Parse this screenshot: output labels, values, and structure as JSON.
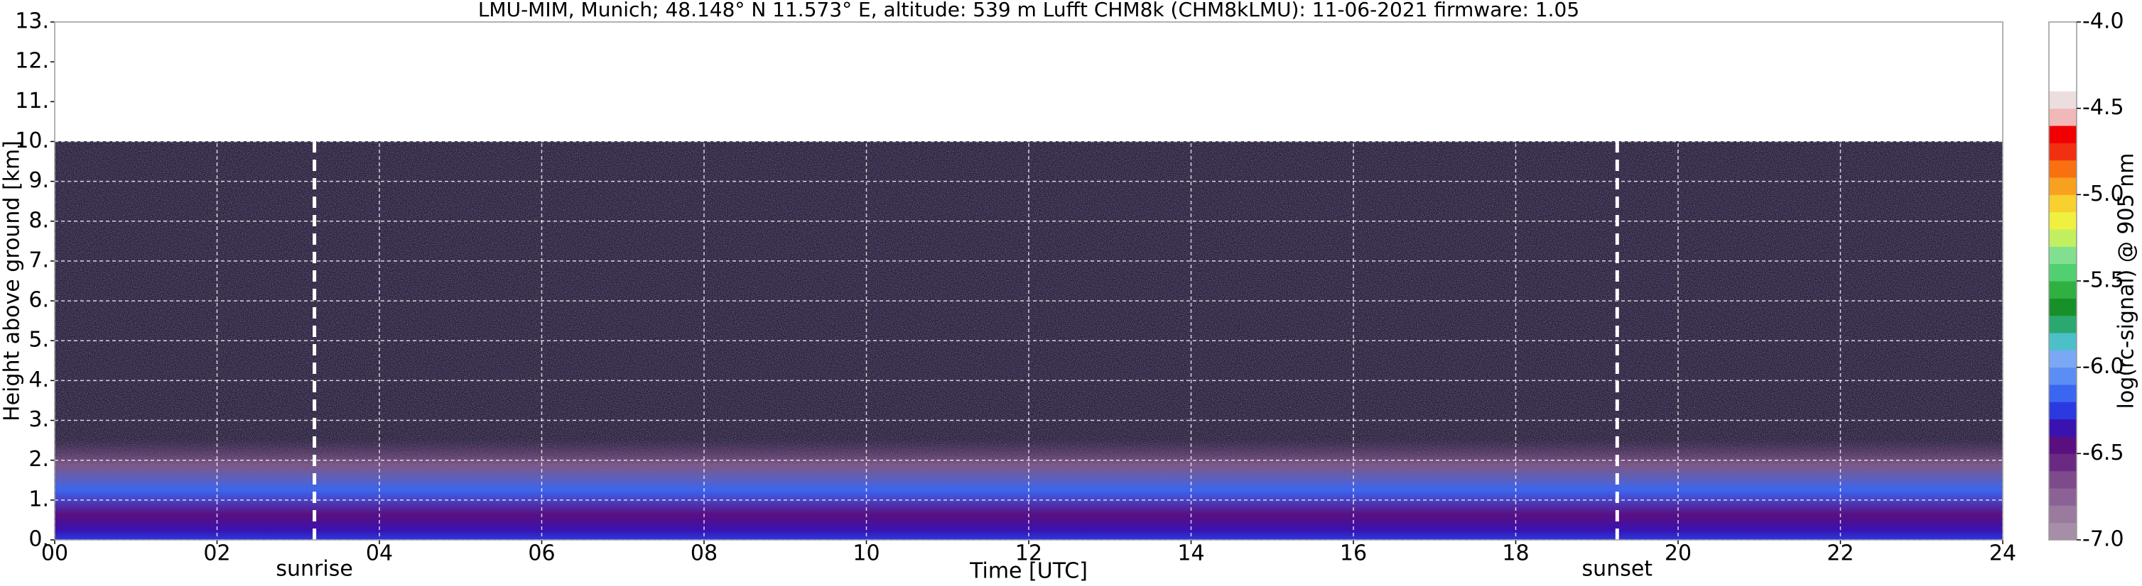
{
  "chart_data": {
    "type": "heatmap",
    "title": "LMU-MIM, Munich; 48.148° N 11.573° E, altitude: 539 m    Lufft CHM8k (CHM8kLMU): 11-06-2021    firmware: 1.05",
    "xlabel": "Time [UTC]",
    "ylabel": "Height above ground [km]",
    "xlim": [
      0,
      24
    ],
    "xticks": [
      {
        "value": 0,
        "label": "00"
      },
      {
        "value": 2,
        "label": "02"
      },
      {
        "value": 4,
        "label": "04"
      },
      {
        "value": 6,
        "label": "06"
      },
      {
        "value": 8,
        "label": "08"
      },
      10,
      12,
      14,
      16,
      18,
      20,
      22,
      24
    ],
    "ylim": [
      0,
      13
    ],
    "yticks": [
      {
        "value": 0,
        "label": "0."
      },
      {
        "value": 1,
        "label": "1."
      },
      {
        "value": 2,
        "label": "2."
      },
      {
        "value": 3,
        "label": "3."
      },
      {
        "value": 4,
        "label": "4."
      },
      {
        "value": 5,
        "label": "5."
      },
      {
        "value": 6,
        "label": "6."
      },
      {
        "value": 7,
        "label": "7."
      },
      {
        "value": 8,
        "label": "8."
      },
      {
        "value": 9,
        "label": "9."
      },
      {
        "value": 10,
        "label": "10."
      },
      {
        "value": 11,
        "label": "11."
      },
      {
        "value": 12,
        "label": "12."
      },
      {
        "value": 13,
        "label": "13."
      }
    ],
    "grid": true,
    "colorbar_label": "log(rc-signal) @ 905 nm",
    "clim": [
      -7,
      -4
    ],
    "cticks": [
      {
        "value": -7,
        "label": "-7.0"
      },
      {
        "value": -6.5,
        "label": "-6.5"
      },
      {
        "value": -6,
        "label": "-6.0"
      },
      {
        "value": -5.5,
        "label": "-5.5"
      },
      {
        "value": -5,
        "label": "-5.0"
      },
      {
        "value": -4.5,
        "label": "-4.5"
      },
      {
        "value": -4,
        "label": "-4.0"
      }
    ],
    "colors": [
      "#a78ea8",
      "#9a7a9f",
      "#8c6296",
      "#7d4a8c",
      "#6a2a84",
      "#5a0f80",
      "#3a12b0",
      "#2a3ae0",
      "#3b66f0",
      "#5b8ef5",
      "#7aa8f5",
      "#4cc0c8",
      "#2aa870",
      "#18902a",
      "#30b040",
      "#50d070",
      "#80e090",
      "#c0f060",
      "#f0f040",
      "#f8d030",
      "#f8a020",
      "#f87010",
      "#f03010",
      "#f00000",
      "#f0b8b8",
      "#ecdede",
      "#ffffff",
      "#ffffff",
      "#ffffff",
      "#ffffff"
    ],
    "annotations": [
      {
        "text": "sunrise",
        "x": 3.2
      },
      {
        "text": "sunset",
        "x": 19.25
      }
    ]
  }
}
